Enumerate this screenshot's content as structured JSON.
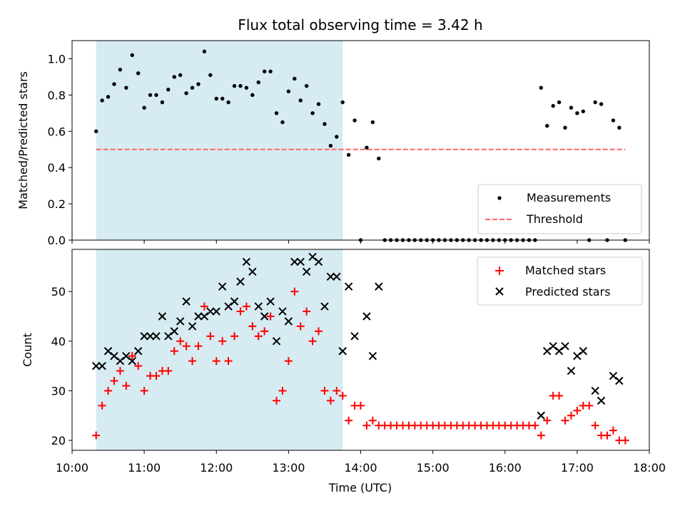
{
  "title": "Flux total observing time = 3.42 h",
  "xlabel": "Time (UTC)",
  "x_ticks": [
    "10:00",
    "11:00",
    "12:00",
    "13:00",
    "14:00",
    "15:00",
    "16:00",
    "17:00",
    "18:00"
  ],
  "colors": {
    "span": "#add8e6",
    "measurements": "#000000",
    "threshold": "#ff6666",
    "matched": "#ff0000",
    "predicted": "#000000"
  },
  "chart_data": [
    {
      "type": "scatter",
      "ylabel": "Matched/Predicted stars",
      "ylim": [
        0,
        1.1
      ],
      "xlim": [
        "10:00",
        "18:00"
      ],
      "y_ticks": [
        "0.0",
        "0.2",
        "0.4",
        "0.6",
        "0.8",
        "1.0"
      ],
      "shaded_span": {
        "start": "10:20",
        "end": "13:45"
      },
      "threshold": 0.5,
      "threshold_range": [
        "10:20",
        "17:40"
      ],
      "legend": [
        "Measurements",
        "Threshold"
      ],
      "legend_position": "lower right",
      "series": [
        {
          "name": "Measurements",
          "marker": "dot",
          "x": [
            "10:20",
            "10:25",
            "10:30",
            "10:35",
            "10:40",
            "10:45",
            "10:50",
            "10:55",
            "11:00",
            "11:05",
            "11:10",
            "11:15",
            "11:20",
            "11:25",
            "11:30",
            "11:35",
            "11:40",
            "11:45",
            "11:50",
            "11:55",
            "12:00",
            "12:05",
            "12:10",
            "12:15",
            "12:20",
            "12:25",
            "12:30",
            "12:35",
            "12:40",
            "12:45",
            "12:50",
            "12:55",
            "13:00",
            "13:05",
            "13:10",
            "13:15",
            "13:20",
            "13:25",
            "13:30",
            "13:35",
            "13:40",
            "13:45",
            "13:50",
            "13:55",
            "14:00",
            "14:05",
            "14:10",
            "14:15",
            "14:20",
            "14:25",
            "14:30",
            "14:35",
            "14:40",
            "14:45",
            "14:50",
            "14:55",
            "15:00",
            "15:05",
            "15:10",
            "15:15",
            "15:20",
            "15:25",
            "15:30",
            "15:35",
            "15:40",
            "15:45",
            "15:50",
            "15:55",
            "16:00",
            "16:05",
            "16:10",
            "16:15",
            "16:20",
            "16:25",
            "16:30",
            "16:35",
            "16:40",
            "16:45",
            "16:50",
            "16:55",
            "17:00",
            "17:05",
            "17:10",
            "17:15",
            "17:20",
            "17:25",
            "17:30",
            "17:35",
            "17:40"
          ],
          "y": [
            0.6,
            0.77,
            0.79,
            0.86,
            0.94,
            0.84,
            1.02,
            0.92,
            0.73,
            0.8,
            0.8,
            0.76,
            0.83,
            0.9,
            0.91,
            0.81,
            0.84,
            0.86,
            1.04,
            0.91,
            0.78,
            0.78,
            0.76,
            0.85,
            0.85,
            0.84,
            0.8,
            0.87,
            0.93,
            0.93,
            0.7,
            0.65,
            0.82,
            0.89,
            0.77,
            0.85,
            0.7,
            0.75,
            0.64,
            0.52,
            0.57,
            0.76,
            0.47,
            0.66,
            0.0,
            0.51,
            0.65,
            0.45,
            0.0,
            0.0,
            0.0,
            0.0,
            0.0,
            0.0,
            0.0,
            0.0,
            0.0,
            0.0,
            0.0,
            0.0,
            0.0,
            0.0,
            0.0,
            0.0,
            0.0,
            0.0,
            0.0,
            0.0,
            0.0,
            0.0,
            0.0,
            0.0,
            0.0,
            0.0,
            0.84,
            0.63,
            0.74,
            0.76,
            0.62,
            0.73,
            0.7,
            0.71,
            0.0,
            0.76,
            0.75,
            0.0,
            0.66,
            0.62,
            0.0
          ]
        }
      ]
    },
    {
      "type": "scatter",
      "ylabel": "Count",
      "ylim": [
        18,
        58.5
      ],
      "xlim": [
        "10:00",
        "18:00"
      ],
      "y_ticks": [
        "20",
        "30",
        "40",
        "50"
      ],
      "shaded_span": {
        "start": "10:20",
        "end": "13:45"
      },
      "legend": [
        "Matched stars",
        "Predicted stars"
      ],
      "legend_position": "upper right",
      "series": [
        {
          "name": "Matched stars",
          "marker": "plus",
          "x": [
            "10:20",
            "10:25",
            "10:30",
            "10:35",
            "10:40",
            "10:45",
            "10:50",
            "10:55",
            "11:00",
            "11:05",
            "11:10",
            "11:15",
            "11:20",
            "11:25",
            "11:30",
            "11:35",
            "11:40",
            "11:45",
            "11:50",
            "11:55",
            "12:00",
            "12:05",
            "12:10",
            "12:15",
            "12:20",
            "12:25",
            "12:30",
            "12:35",
            "12:40",
            "12:45",
            "12:50",
            "12:55",
            "13:00",
            "13:05",
            "13:10",
            "13:15",
            "13:20",
            "13:25",
            "13:30",
            "13:35",
            "13:40",
            "13:45",
            "13:50",
            "13:55",
            "14:00",
            "14:05",
            "14:10",
            "14:15",
            "14:20",
            "14:25",
            "14:30",
            "14:35",
            "14:40",
            "14:45",
            "14:50",
            "14:55",
            "15:00",
            "15:05",
            "15:10",
            "15:15",
            "15:20",
            "15:25",
            "15:30",
            "15:35",
            "15:40",
            "15:45",
            "15:50",
            "15:55",
            "16:00",
            "16:05",
            "16:10",
            "16:15",
            "16:20",
            "16:25",
            "16:30",
            "16:35",
            "16:40",
            "16:45",
            "16:50",
            "16:55",
            "17:00",
            "17:05",
            "17:10",
            "17:15",
            "17:20",
            "17:25",
            "17:30",
            "17:35",
            "17:40"
          ],
          "y": [
            21,
            27,
            30,
            32,
            34,
            31,
            37,
            35,
            30,
            33,
            33,
            34,
            34,
            38,
            40,
            39,
            36,
            39,
            47,
            41,
            36,
            40,
            36,
            41,
            46,
            47,
            43,
            41,
            42,
            45,
            28,
            30,
            36,
            50,
            43,
            46,
            40,
            42,
            30,
            28,
            30,
            29,
            24,
            27,
            27,
            23,
            24,
            23,
            23,
            23,
            23,
            23,
            23,
            23,
            23,
            23,
            23,
            23,
            23,
            23,
            23,
            23,
            23,
            23,
            23,
            23,
            23,
            23,
            23,
            23,
            23,
            23,
            23,
            23,
            21,
            24,
            29,
            29,
            24,
            25,
            26,
            27,
            27,
            23,
            21,
            21,
            22,
            20,
            20
          ]
        },
        {
          "name": "Predicted stars",
          "marker": "x",
          "x": [
            "10:20",
            "10:25",
            "10:30",
            "10:35",
            "10:40",
            "10:45",
            "10:50",
            "10:55",
            "11:00",
            "11:05",
            "11:10",
            "11:15",
            "11:20",
            "11:25",
            "11:30",
            "11:35",
            "11:40",
            "11:45",
            "11:50",
            "11:55",
            "12:00",
            "12:05",
            "12:10",
            "12:15",
            "12:20",
            "12:25",
            "12:30",
            "12:35",
            "12:40",
            "12:45",
            "12:50",
            "12:55",
            "13:00",
            "13:05",
            "13:10",
            "13:15",
            "13:20",
            "13:25",
            "13:30",
            "13:35",
            "13:40",
            "13:45",
            "13:50",
            "13:55",
            "14:05",
            "14:10",
            "14:15",
            "16:30",
            "16:35",
            "16:40",
            "16:45",
            "16:50",
            "16:55",
            "17:00",
            "17:05",
            "17:15",
            "17:20",
            "17:30",
            "17:35"
          ],
          "y": [
            35,
            35,
            38,
            37,
            36,
            37,
            36,
            38,
            41,
            41,
            41,
            45,
            41,
            42,
            44,
            48,
            43,
            45,
            45,
            46,
            46,
            51,
            47,
            48,
            52,
            56,
            54,
            47,
            45,
            48,
            40,
            46,
            44,
            56,
            56,
            54,
            57,
            56,
            47,
            53,
            53,
            38,
            51,
            41,
            45,
            37,
            51,
            25,
            38,
            39,
            38,
            39,
            34,
            37,
            38,
            30,
            28,
            33,
            32
          ]
        }
      ]
    }
  ]
}
